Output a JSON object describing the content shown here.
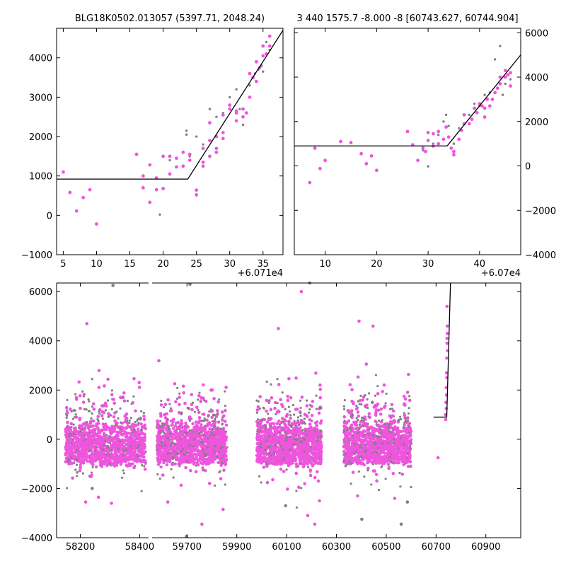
{
  "colors": {
    "pink": "#ee55dd",
    "gray": "#808080",
    "fit": "#000000"
  },
  "chart_data": [
    {
      "type": "scatter",
      "title": "BLG18K0502.013057 (5397.71, 2048.24)",
      "x_offset_label": "+6.071e4",
      "xlim": [
        4,
        38
      ],
      "ylim": [
        -1000,
        4750
      ],
      "xticks": [
        "5",
        "10",
        "15",
        "20",
        "25",
        "30",
        "35"
      ],
      "yticks": [
        "−1000",
        "0",
        "1000",
        "2000",
        "3000",
        "4000"
      ],
      "yaxis_side": "left",
      "fit_line": [
        [
          4,
          920
        ],
        [
          23.7,
          920
        ],
        [
          38,
          4700
        ]
      ],
      "series": [
        {
          "color": "gray",
          "points": [
            [
              19.5,
              20
            ],
            [
              25,
              2000
            ],
            [
              26,
              1800
            ],
            [
              27,
              2700
            ],
            [
              28,
              2500
            ],
            [
              29,
              2600
            ],
            [
              30,
              3000
            ],
            [
              31,
              3200
            ],
            [
              31.5,
              2700
            ],
            [
              32,
              2300
            ],
            [
              33,
              3300
            ],
            [
              33.8,
              3600
            ],
            [
              34.3,
              3700
            ],
            [
              34.8,
              3800
            ],
            [
              35,
              3650
            ],
            [
              35.5,
              4400
            ],
            [
              36,
              4200
            ],
            [
              23.5,
              2150
            ],
            [
              23.5,
              2050
            ],
            [
              24,
              1500
            ],
            [
              21,
              1400
            ]
          ]
        },
        {
          "color": "pink",
          "points": [
            [
              5,
              1100
            ],
            [
              6,
              580
            ],
            [
              7,
              110
            ],
            [
              8,
              450
            ],
            [
              9,
              650
            ],
            [
              10,
              -220
            ],
            [
              16,
              1550
            ],
            [
              17,
              700
            ],
            [
              17,
              1000
            ],
            [
              18,
              330
            ],
            [
              18,
              1280
            ],
            [
              19,
              650
            ],
            [
              19,
              950
            ],
            [
              20,
              1500
            ],
            [
              20,
              680
            ],
            [
              21,
              1500
            ],
            [
              21,
              1050
            ],
            [
              22,
              1450
            ],
            [
              22,
              1230
            ],
            [
              23,
              1600
            ],
            [
              23,
              1250
            ],
            [
              24,
              1400
            ],
            [
              24,
              1550
            ],
            [
              25,
              640
            ],
            [
              25,
              520
            ],
            [
              26,
              1250
            ],
            [
              26,
              1350
            ],
            [
              26,
              1700
            ],
            [
              27,
              1500
            ],
            [
              27,
              1900
            ],
            [
              27,
              2350
            ],
            [
              28,
              1700
            ],
            [
              28,
              2000
            ],
            [
              28,
              1600
            ],
            [
              29,
              1950
            ],
            [
              29,
              2100
            ],
            [
              29,
              2550
            ],
            [
              30,
              2800
            ],
            [
              30,
              2700
            ],
            [
              31,
              2400
            ],
            [
              31,
              2600
            ],
            [
              31,
              2650
            ],
            [
              32,
              2500
            ],
            [
              32,
              2700
            ],
            [
              33,
              3600
            ],
            [
              33.5,
              3500
            ],
            [
              34,
              3400
            ],
            [
              34,
              3900
            ],
            [
              34.5,
              3750
            ],
            [
              35,
              4050
            ],
            [
              35,
              4300
            ],
            [
              35.5,
              4100
            ],
            [
              36,
              4550
            ],
            [
              36,
              4300
            ],
            [
              33,
              3000
            ],
            [
              32.5,
              2600
            ]
          ]
        }
      ]
    },
    {
      "type": "scatter",
      "title": "3 440 1575.7 -8.000 -8 [60743.627, 60744.904]",
      "x_offset_label": "+6.07e4",
      "xlim": [
        4,
        48
      ],
      "ylim": [
        -4000,
        6200
      ],
      "xticks": [
        "10",
        "20",
        "30",
        "40"
      ],
      "yticks": [
        "−4000",
        "−2000",
        "0",
        "2000",
        "4000",
        "6000"
      ],
      "yaxis_side": "right",
      "fit_line": [
        [
          4,
          900
        ],
        [
          33.7,
          900
        ],
        [
          48,
          5000
        ]
      ],
      "series": [
        {
          "color": "gray",
          "points": [
            [
              30,
              -20
            ],
            [
              31,
              1000
            ],
            [
              32,
              1400
            ],
            [
              33,
              2000
            ],
            [
              33.5,
              2300
            ],
            [
              34,
              1800
            ],
            [
              35,
              1000
            ],
            [
              36,
              1700
            ],
            [
              37,
              1900
            ],
            [
              38,
              2300
            ],
            [
              39,
              2800
            ],
            [
              40,
              2700
            ],
            [
              41,
              3200
            ],
            [
              42,
              3300
            ],
            [
              43,
              4800
            ],
            [
              44,
              5400
            ],
            [
              45,
              3700
            ],
            [
              46,
              3900
            ],
            [
              44.5,
              3200
            ],
            [
              29,
              700
            ]
          ]
        },
        {
          "color": "pink",
          "points": [
            [
              7,
              -750
            ],
            [
              8,
              800
            ],
            [
              9,
              -120
            ],
            [
              10,
              250
            ],
            [
              13,
              1100
            ],
            [
              15,
              1050
            ],
            [
              17,
              550
            ],
            [
              18,
              100
            ],
            [
              19,
              450
            ],
            [
              20,
              -200
            ],
            [
              26,
              1550
            ],
            [
              27,
              950
            ],
            [
              28,
              250
            ],
            [
              29,
              800
            ],
            [
              29.5,
              650
            ],
            [
              30,
              1150
            ],
            [
              30,
              1500
            ],
            [
              31,
              900
            ],
            [
              31,
              1450
            ],
            [
              32,
              1550
            ],
            [
              32,
              1000
            ],
            [
              33,
              1200
            ],
            [
              33.5,
              1750
            ],
            [
              34,
              1300
            ],
            [
              34.5,
              800
            ],
            [
              35,
              500
            ],
            [
              35,
              650
            ],
            [
              36,
              1200
            ],
            [
              36.5,
              1600
            ],
            [
              37,
              1900
            ],
            [
              37,
              2300
            ],
            [
              38,
              1900
            ],
            [
              38.5,
              2100
            ],
            [
              39,
              2600
            ],
            [
              39.5,
              2400
            ],
            [
              40,
              2800
            ],
            [
              40.5,
              2700
            ],
            [
              41,
              2200
            ],
            [
              41,
              2600
            ],
            [
              41.5,
              3000
            ],
            [
              42,
              2700
            ],
            [
              42.5,
              3000
            ],
            [
              43,
              3300
            ],
            [
              43.5,
              3500
            ],
            [
              44,
              4000
            ],
            [
              44,
              3700
            ],
            [
              45,
              4300
            ],
            [
              45,
              4000
            ],
            [
              46,
              3600
            ],
            [
              45.5,
              4100
            ],
            [
              46,
              4200
            ]
          ]
        }
      ]
    },
    {
      "type": "scatter",
      "title": "",
      "xlim": [
        58120,
        61040
      ],
      "ylim": [
        -4000,
        6350
      ],
      "xticks": [
        "58200",
        "58400",
        "59700",
        "59900",
        "60100",
        "60300",
        "60500",
        "60700",
        "60900"
      ],
      "yticks": [
        "−4000",
        "−2000",
        "0",
        "2000",
        "4000",
        "6000"
      ],
      "yaxis_side": "left",
      "broken_axis": true,
      "observing_seasons": [
        [
          58150,
          58420
        ],
        [
          59580,
          59860
        ],
        [
          59980,
          60240
        ],
        [
          60330,
          60600
        ]
      ],
      "dense_band": [
        -700,
        1050
      ],
      "fit_line": [
        [
          60690,
          900
        ],
        [
          60743,
          900
        ],
        [
          60758,
          6350
        ]
      ],
      "outliers": [
        [
          58310,
          6250
        ],
        [
          58222,
          4700
        ],
        [
          58218,
          -2550
        ],
        [
          58240,
          -2000
        ],
        [
          58232,
          -1500
        ],
        [
          58305,
          -2600
        ],
        [
          59698,
          -3950
        ],
        [
          59760,
          -3450
        ],
        [
          59623,
          -2550
        ],
        [
          59712,
          6300
        ],
        [
          59845,
          -2850
        ],
        [
          60067,
          4500
        ],
        [
          60193,
          6350
        ],
        [
          60159,
          6000
        ],
        [
          60213,
          -3450
        ],
        [
          60096,
          -2700
        ],
        [
          60185,
          -3100
        ],
        [
          60232,
          -2500
        ],
        [
          60560,
          -3450
        ],
        [
          60534,
          -2400
        ],
        [
          60391,
          4800
        ],
        [
          60402,
          -3250
        ],
        [
          60385,
          -2300
        ],
        [
          60447,
          4600
        ],
        [
          60585,
          -2550
        ],
        [
          60708,
          -750
        ]
      ],
      "cluster_points": [
        [
          60738,
          1000
        ],
        [
          60740,
          1500
        ],
        [
          60741,
          2100
        ],
        [
          60742,
          2700
        ],
        [
          60743,
          3300
        ],
        [
          60744,
          3900
        ],
        [
          60745,
          4300
        ],
        [
          60745,
          4600
        ],
        [
          60744,
          5400
        ],
        [
          60739,
          800
        ],
        [
          60741,
          1250
        ],
        [
          60743,
          2500
        ],
        [
          60742,
          1800
        ],
        [
          60744,
          4100
        ],
        [
          60746,
          3600
        ]
      ]
    }
  ]
}
